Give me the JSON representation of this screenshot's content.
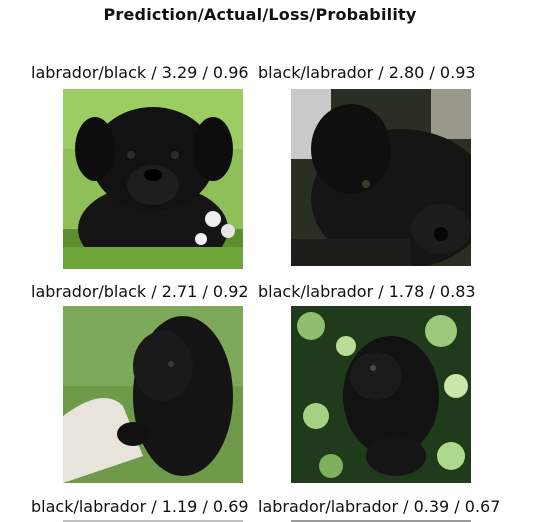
{
  "figure": {
    "title": "Prediction/Actual/Loss/Probability"
  },
  "chart_data": {
    "type": "image-grid",
    "title": "Prediction/Actual/Loss/Probability",
    "columns": [
      "Prediction",
      "Actual",
      "Loss",
      "Probability"
    ],
    "items": [
      {
        "label": "labrador/black / 3.29 / 0.96",
        "prediction": "labrador",
        "actual": "black",
        "loss": 3.29,
        "probability": 0.96
      },
      {
        "label": "black/labrador / 2.80 / 0.93",
        "prediction": "black",
        "actual": "labrador",
        "loss": 2.8,
        "probability": 0.93
      },
      {
        "label": "labrador/black / 2.71 / 0.92",
        "prediction": "labrador",
        "actual": "black",
        "loss": 2.71,
        "probability": 0.92
      },
      {
        "label": "black/labrador / 1.78 / 0.83",
        "prediction": "black",
        "actual": "labrador",
        "loss": 1.78,
        "probability": 0.83
      },
      {
        "label": "black/labrador / 1.19 / 0.69",
        "prediction": "black",
        "actual": "labrador",
        "loss": 1.19,
        "probability": 0.69
      },
      {
        "label": "labrador/labrador / 0.39 / 0.67",
        "prediction": "labrador",
        "actual": "labrador",
        "loss": 0.39,
        "probability": 0.67
      }
    ]
  }
}
